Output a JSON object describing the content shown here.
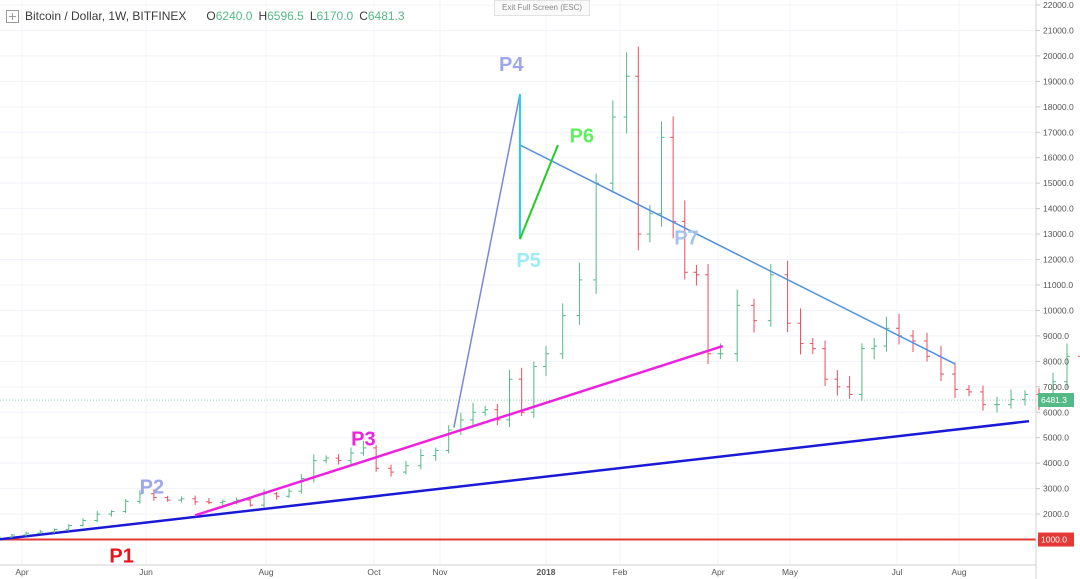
{
  "header": {
    "symbol": "Bitcoin / Dollar, 1W, BITFINEX",
    "open_label": "O",
    "open_value": "6240.0",
    "high_label": "H",
    "high_value": "6596.5",
    "low_label": "L",
    "low_value": "6170.0",
    "close_label": "C",
    "close_value": "6481.3"
  },
  "exit_fullscreen_label": "Exit Full Screen (ESC)",
  "colors": {
    "up": "#53b987",
    "down": "#eb4d5c",
    "axis_text": "#555555",
    "grid": "#f0f3fa"
  },
  "chart_data": {
    "type": "ohlc",
    "title": "Bitcoin / Dollar, 1W, BITFINEX",
    "ylim": [
      0,
      22000
    ],
    "y_ticks": [
      "22000.0",
      "21000.0",
      "20000.0",
      "19000.0",
      "18000.0",
      "17000.0",
      "16000.0",
      "15000.0",
      "14000.0",
      "13000.0",
      "12000.0",
      "11000.0",
      "10000.0",
      "9000.0",
      "8000.0",
      "7000.0",
      "6000.0",
      "5000.0",
      "4000.0",
      "3000.0",
      "2000.0"
    ],
    "x_tick_labels": [
      "Apr",
      "Jun",
      "Aug",
      "Oct",
      "Nov",
      "2018",
      "Feb",
      "Apr",
      "May",
      "Jul",
      "Aug"
    ],
    "current_price_label": "6481.3",
    "horizontal_level_label": "1000.0",
    "annotations": [
      "P1",
      "P2",
      "P3",
      "P4",
      "P5",
      "P6",
      "P7"
    ],
    "weekly_closes": [
      1100,
      1180,
      1250,
      1300,
      1400,
      1550,
      1750,
      2000,
      2100,
      2500,
      2800,
      2650,
      2550,
      2600,
      2480,
      2450,
      2500,
      2550,
      2350,
      2800,
      2700,
      2900,
      3400,
      4100,
      4200,
      4100,
      4400,
      4600,
      3800,
      3650,
      3900,
      4300,
      4500,
      5300,
      5700,
      6000,
      6100,
      5700,
      7300,
      6000,
      7800,
      8300,
      9800,
      11200,
      15000,
      17600,
      19200,
      13000,
      13800,
      16800,
      13500,
      11500,
      11400,
      8300,
      8300,
      10200,
      9600,
      11400,
      9500,
      8700,
      8500,
      7300,
      7000,
      6700,
      8500,
      8600,
      9300,
      9000,
      8800,
      8200,
      7500,
      6900,
      6800,
      6300,
      6300,
      6500,
      6700,
      6400,
      7200,
      8200,
      7000,
      6400,
      6600,
      6900,
      7300,
      6200,
      6481.3
    ],
    "trend_lines": [
      {
        "name": "P3 support",
        "from": [
          "2017-06-26",
          1950
        ],
        "to": [
          "2018-04-03",
          8600
        ]
      },
      {
        "name": "long-term support",
        "from": [
          "2017-03-20",
          1000
        ],
        "to": [
          "2018-09-05",
          5650
        ]
      },
      {
        "name": "P7 resistance",
        "from": [
          "2017-12-17",
          16500
        ],
        "to": [
          "2018-07-30",
          7900
        ]
      },
      {
        "name": "P4 rally",
        "from": [
          "2017-11-09",
          5400
        ],
        "to": [
          "2017-12-17",
          18500
        ]
      }
    ]
  }
}
